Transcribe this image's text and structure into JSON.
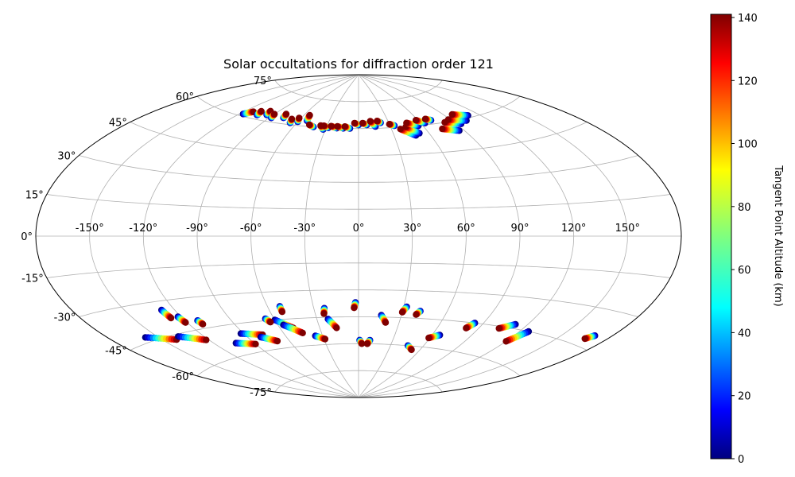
{
  "chart_data": {
    "type": "scatter",
    "projection": "aitoff",
    "title": "Solar occultations for diffraction order 121",
    "x_tick_labels": [
      "-150°",
      "-120°",
      "-90°",
      "-60°",
      "-30°",
      "0°",
      "30°",
      "60°",
      "90°",
      "120°",
      "150°"
    ],
    "y_tick_labels": [
      "-75°",
      "-60°",
      "-45°",
      "-30°",
      "-15°",
      "0°",
      "15°",
      "30°",
      "45°",
      "60°",
      "75°"
    ],
    "x_ticks_deg": [
      -150,
      -120,
      -90,
      -60,
      -30,
      0,
      30,
      60,
      90,
      120,
      150
    ],
    "y_ticks_deg": [
      -75,
      -60,
      -45,
      -30,
      -15,
      0,
      15,
      30,
      45,
      60,
      75
    ],
    "grid": true,
    "colorbar": {
      "label": "Tangent Point Altitude (km)",
      "range": [
        0,
        141
      ],
      "ticks": [
        0,
        20,
        40,
        60,
        80,
        100,
        120,
        140
      ],
      "tick_labels": [
        "0",
        "20",
        "40",
        "60",
        "80",
        "100",
        "120",
        "140"
      ],
      "colormap": "jet"
    },
    "tracks_description": "Each occultation track runs from low altitude (0 km, dark blue) to high altitude (141 km, dark red). Values are estimated longitude/latitude in degrees.",
    "tracks": [
      {
        "start": [
          -117,
          61
        ],
        "end": [
          -112,
          63
        ]
      },
      {
        "start": [
          -104,
          62
        ],
        "end": [
          -106,
          64
        ]
      },
      {
        "start": [
          -96,
          63
        ],
        "end": [
          -98,
          65
        ]
      },
      {
        "start": [
          -88,
          62
        ],
        "end": [
          -90,
          64
        ]
      },
      {
        "start": [
          -77,
          63
        ],
        "end": [
          -79,
          65
        ]
      },
      {
        "start": [
          -66,
          61
        ],
        "end": [
          -68,
          63
        ]
      },
      {
        "start": [
          -60,
          62
        ],
        "end": [
          -62,
          64
        ]
      },
      {
        "start": [
          -52,
          63
        ],
        "end": [
          -54,
          66
        ]
      },
      {
        "start": [
          -42,
          60
        ],
        "end": [
          -47,
          61
        ]
      },
      {
        "start": [
          -32,
          59
        ],
        "end": [
          -36,
          61
        ]
      },
      {
        "start": [
          -28,
          60
        ],
        "end": [
          -33,
          61
        ]
      },
      {
        "start": [
          -20,
          60
        ],
        "end": [
          -26,
          61
        ]
      },
      {
        "start": [
          -14,
          60
        ],
        "end": [
          -20,
          61
        ]
      },
      {
        "start": [
          -8,
          60
        ],
        "end": [
          -13,
          61
        ]
      },
      {
        "start": [
          0,
          62
        ],
        "end": [
          -4,
          63
        ]
      },
      {
        "start": [
          8,
          62
        ],
        "end": [
          4,
          63
        ]
      },
      {
        "start": [
          16,
          61
        ],
        "end": [
          12,
          64
        ]
      },
      {
        "start": [
          22,
          63
        ],
        "end": [
          19,
          64
        ]
      },
      {
        "start": [
          34,
          61
        ],
        "end": [
          30,
          62
        ]
      },
      {
        "start": [
          48,
          55
        ],
        "end": [
          38,
          59
        ]
      },
      {
        "start": [
          52,
          56
        ],
        "end": [
          44,
          60
        ]
      },
      {
        "start": [
          56,
          60
        ],
        "end": [
          47,
          62
        ]
      },
      {
        "start": [
          64,
          61
        ],
        "end": [
          58,
          63
        ]
      },
      {
        "start": [
          72,
          62
        ],
        "end": [
          68,
          63
        ]
      },
      {
        "start": [
          86,
          55
        ],
        "end": [
          74,
          57
        ]
      },
      {
        "start": [
          94,
          58
        ],
        "end": [
          82,
          60
        ]
      },
      {
        "start": [
          102,
          59
        ],
        "end": [
          88,
          61
        ]
      },
      {
        "start": [
          110,
          61
        ],
        "end": [
          98,
          63
        ]
      },
      {
        "start": [
          -158,
          -43
        ],
        "end": [
          -141,
          -47
        ]
      },
      {
        "start": [
          -137,
          -46
        ],
        "end": [
          -122,
          -50
        ]
      },
      {
        "start": [
          -128,
          -34
        ],
        "end": [
          -127,
          -38
        ]
      },
      {
        "start": [
          -122,
          -38
        ],
        "end": [
          -121,
          -41
        ]
      },
      {
        "start": [
          -112,
          -41
        ],
        "end": [
          -111,
          -43
        ]
      },
      {
        "start": [
          -92,
          -50
        ],
        "end": [
          -77,
          -52
        ]
      },
      {
        "start": [
          -80,
          -53
        ],
        "end": [
          -70,
          -56
        ]
      },
      {
        "start": [
          -104,
          -54
        ],
        "end": [
          -90,
          -56
        ]
      },
      {
        "start": [
          -60,
          -45
        ],
        "end": [
          -50,
          -50
        ]
      },
      {
        "start": [
          -56,
          -48
        ],
        "end": [
          -45,
          -53
        ]
      },
      {
        "start": [
          -66,
          -44
        ],
        "end": [
          -64,
          -46
        ]
      },
      {
        "start": [
          -52,
          -38
        ],
        "end": [
          -52,
          -41
        ]
      },
      {
        "start": [
          -36,
          -55
        ],
        "end": [
          -29,
          -57
        ]
      },
      {
        "start": [
          -23,
          -40
        ],
        "end": [
          -24,
          -43
        ]
      },
      {
        "start": [
          -22,
          -46
        ],
        "end": [
          -17,
          -51
        ]
      },
      {
        "start": [
          -2,
          -37
        ],
        "end": [
          -3,
          -40
        ]
      },
      {
        "start": [
          16,
          -44
        ],
        "end": [
          20,
          -48
        ]
      },
      {
        "start": [
          32,
          -39
        ],
        "end": [
          30,
          -42
        ]
      },
      {
        "start": [
          42,
          -41
        ],
        "end": [
          40,
          -43
        ]
      },
      {
        "start": [
          66,
          -53
        ],
        "end": [
          59,
          -55
        ]
      },
      {
        "start": [
          84,
          -45
        ],
        "end": [
          81,
          -48
        ]
      },
      {
        "start": [
          112,
          -43
        ],
        "end": [
          104,
          -46
        ]
      },
      {
        "start": [
          126,
          -45
        ],
        "end": [
          120,
          -51
        ]
      },
      {
        "start": [
          170,
          -40
        ],
        "end": [
          167,
          -42
        ]
      },
      {
        "start": [
          1,
          -58
        ],
        "end": [
          3,
          -60
        ]
      },
      {
        "start": [
          10,
          -58
        ],
        "end": [
          8,
          -60
        ]
      },
      {
        "start": [
          46,
          -60
        ],
        "end": [
          52,
          -62
        ]
      }
    ]
  }
}
